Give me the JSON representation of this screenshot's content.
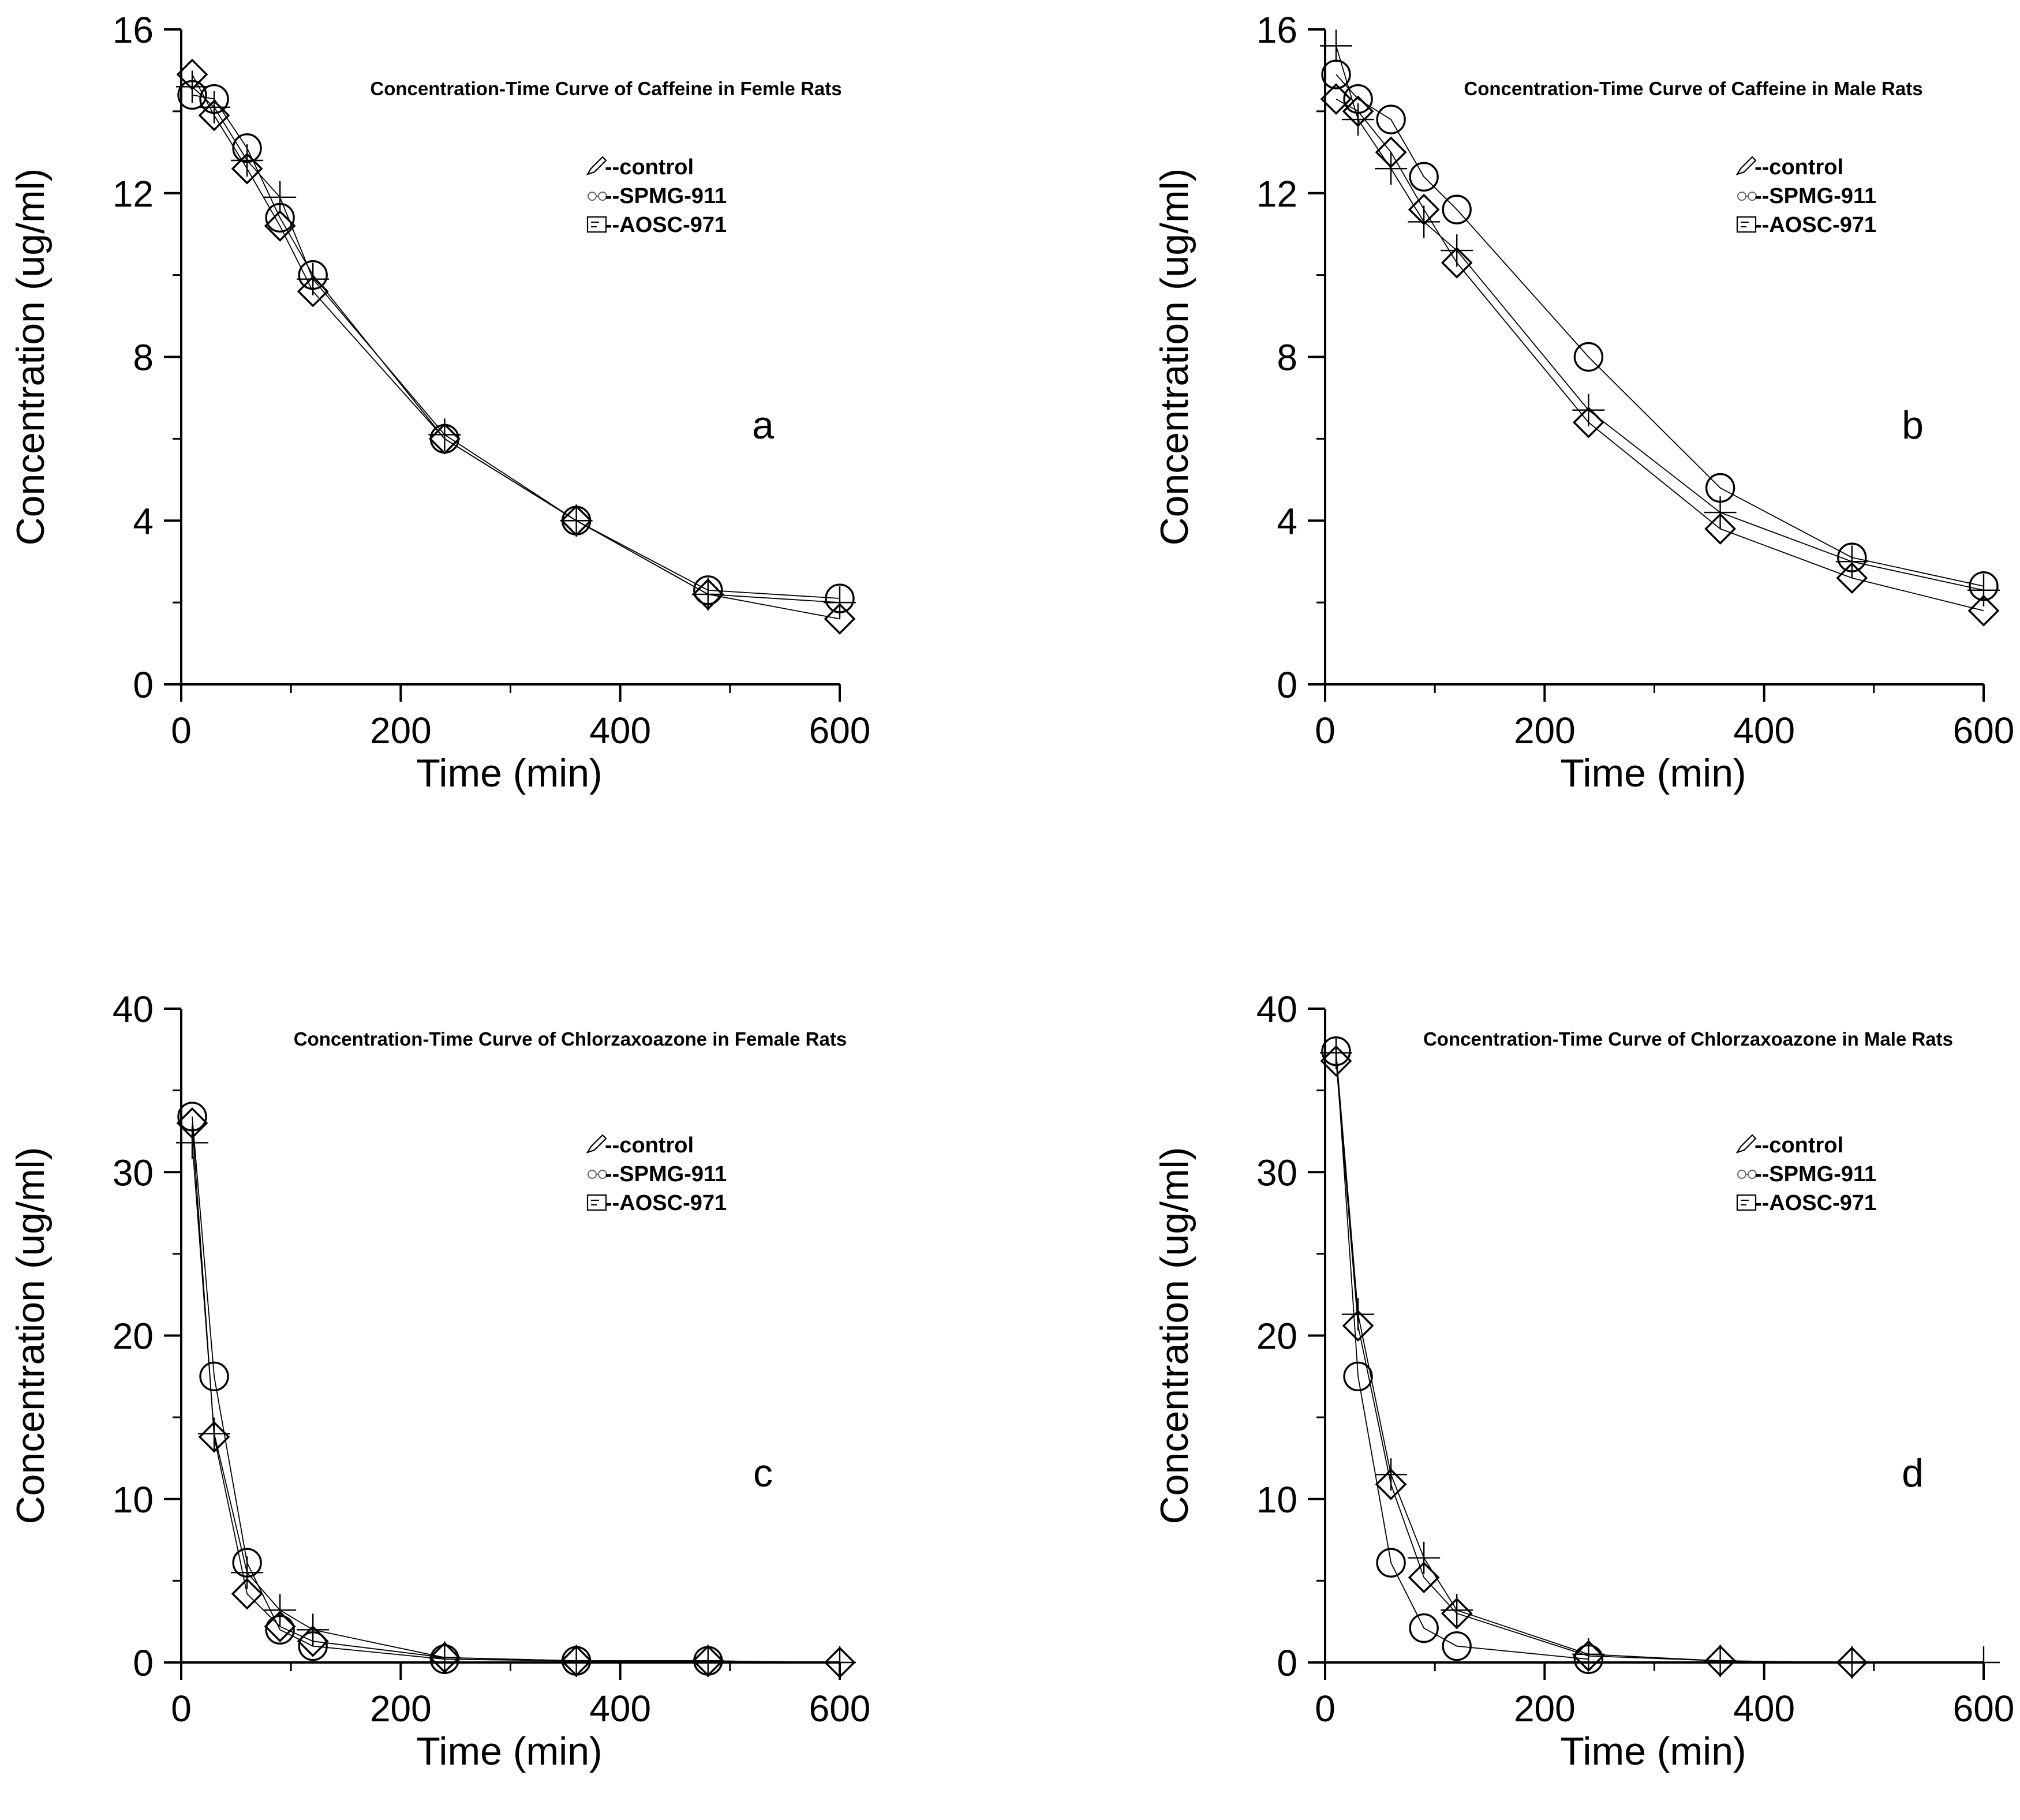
{
  "chart_data": [
    {
      "type": "line",
      "panel": "a",
      "title": "Concentration-Time Curve of Caffeine in Femle Rats",
      "xlabel": "Time (min)",
      "ylabel": "Concentration (ug/ml)",
      "xlim": [
        0,
        600
      ],
      "ylim": [
        0,
        16
      ],
      "xticks": [
        0,
        200,
        400,
        600
      ],
      "yticks": [
        0,
        4,
        8,
        12,
        16
      ],
      "legend": [
        "--control",
        "--SPMG-911",
        "--AOSC-971"
      ],
      "legend_position": "top-right",
      "series": [
        {
          "name": "control",
          "marker": "circle",
          "x": [
            10,
            30,
            60,
            90,
            120,
            240,
            360,
            480,
            600
          ],
          "y": [
            14.4,
            14.3,
            13.1,
            11.4,
            10.0,
            6.0,
            4.0,
            2.3,
            2.1
          ]
        },
        {
          "name": "SPMG-911",
          "marker": "plus",
          "x": [
            10,
            30,
            60,
            90,
            120,
            240,
            360,
            480,
            600
          ],
          "y": [
            14.6,
            14.1,
            12.8,
            11.9,
            9.9,
            6.1,
            4.0,
            2.2,
            2.0
          ]
        },
        {
          "name": "AOSC-971",
          "marker": "diamond",
          "x": [
            10,
            30,
            60,
            90,
            120,
            240,
            360,
            480,
            600
          ],
          "y": [
            14.9,
            13.9,
            12.6,
            11.2,
            9.6,
            6.0,
            4.0,
            2.2,
            1.6
          ]
        }
      ]
    },
    {
      "type": "line",
      "panel": "b",
      "title": "Concentration-Time Curve of Caffeine in Male Rats",
      "xlabel": "Time (min)",
      "ylabel": "Concentration (ug/ml)",
      "xlim": [
        0,
        600
      ],
      "ylim": [
        0,
        16
      ],
      "xticks": [
        0,
        200,
        400,
        600
      ],
      "yticks": [
        0,
        4,
        8,
        12,
        16
      ],
      "legend": [
        "--control",
        "--SPMG-911",
        "--AOSC-971"
      ],
      "legend_position": "top-right",
      "series": [
        {
          "name": "control",
          "marker": "circle",
          "x": [
            10,
            30,
            60,
            90,
            120,
            240,
            360,
            480,
            600
          ],
          "y": [
            14.9,
            14.3,
            13.8,
            12.4,
            11.6,
            8.0,
            4.8,
            3.1,
            2.4
          ]
        },
        {
          "name": "SPMG-911",
          "marker": "plus",
          "x": [
            10,
            30,
            60,
            90,
            120,
            240,
            360,
            480,
            600
          ],
          "y": [
            15.6,
            13.8,
            12.6,
            11.3,
            10.6,
            6.7,
            4.2,
            3.0,
            2.3
          ]
        },
        {
          "name": "AOSC-971",
          "marker": "diamond",
          "x": [
            10,
            30,
            60,
            90,
            120,
            240,
            360,
            480,
            600
          ],
          "y": [
            14.3,
            14.0,
            13.0,
            11.6,
            10.3,
            6.4,
            3.8,
            2.6,
            1.8
          ]
        }
      ]
    },
    {
      "type": "line",
      "panel": "c",
      "title": "Concentration-Time Curve of Chlorzaxoazone in Female Rats",
      "xlabel": "Time (min)",
      "ylabel": "Concentration (ug/ml)",
      "xlim": [
        0,
        600
      ],
      "ylim": [
        0,
        40
      ],
      "xticks": [
        0,
        200,
        400,
        600
      ],
      "yticks": [
        0,
        10,
        20,
        30,
        40
      ],
      "legend": [
        "--control",
        "--SPMG-911",
        "--AOSC-971"
      ],
      "legend_position": "top-right",
      "series": [
        {
          "name": "control",
          "marker": "circle",
          "x": [
            10,
            30,
            60,
            90,
            120,
            240,
            360,
            480
          ],
          "y": [
            33.4,
            17.5,
            6.1,
            2.0,
            1.0,
            0.2,
            0.1,
            0.1
          ]
        },
        {
          "name": "SPMG-911",
          "marker": "plus",
          "x": [
            10,
            30,
            60,
            90,
            120,
            240,
            360,
            480,
            600
          ],
          "y": [
            31.8,
            14.0,
            5.5,
            3.2,
            2.0,
            0.3,
            0.1,
            0.1,
            0.0
          ]
        },
        {
          "name": "AOSC-971",
          "marker": "diamond",
          "x": [
            10,
            30,
            60,
            90,
            120,
            240,
            360,
            480,
            600
          ],
          "y": [
            33.0,
            13.8,
            4.2,
            2.2,
            1.3,
            0.3,
            0.1,
            0.1,
            0.0
          ]
        }
      ]
    },
    {
      "type": "line",
      "panel": "d",
      "title": "Concentration-Time Curve of Chlorzaxoazone in Male Rats",
      "xlabel": "Time (min)",
      "ylabel": "Concentration (ug/ml)",
      "xlim": [
        0,
        600
      ],
      "ylim": [
        0,
        40
      ],
      "xticks": [
        0,
        200,
        400,
        600
      ],
      "yticks": [
        0,
        10,
        20,
        30,
        40
      ],
      "legend": [
        "--control",
        "--SPMG-911",
        "--AOSC-971"
      ],
      "legend_position": "top-right",
      "series": [
        {
          "name": "control",
          "marker": "circle",
          "x": [
            10,
            30,
            60,
            90,
            120,
            240
          ],
          "y": [
            37.4,
            17.5,
            6.1,
            2.1,
            1.0,
            0.2
          ]
        },
        {
          "name": "SPMG-911",
          "marker": "plus",
          "x": [
            10,
            30,
            60,
            90,
            120,
            240,
            360,
            480,
            600
          ],
          "y": [
            37.3,
            21.3,
            11.5,
            6.4,
            3.2,
            0.5,
            0.1,
            0.0,
            0.0
          ]
        },
        {
          "name": "AOSC-971",
          "marker": "diamond",
          "x": [
            10,
            30,
            60,
            90,
            120,
            240,
            360,
            480
          ],
          "y": [
            36.8,
            20.6,
            10.9,
            5.2,
            3.0,
            0.4,
            0.1,
            0.0
          ]
        }
      ]
    }
  ]
}
